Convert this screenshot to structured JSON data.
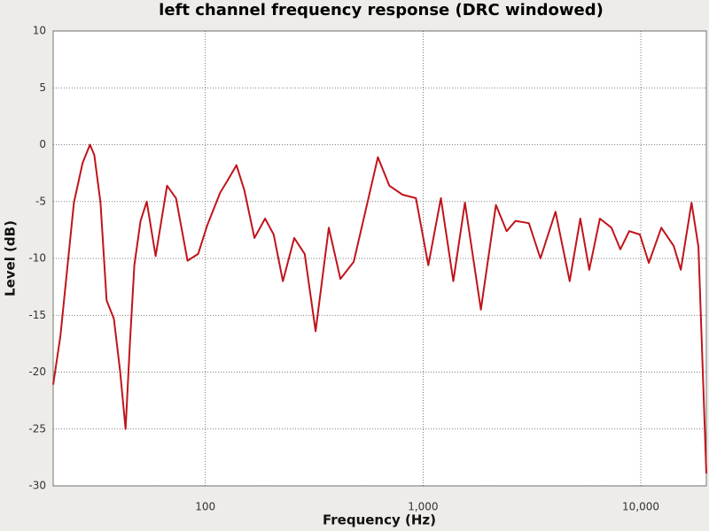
{
  "chart_data": {
    "type": "line",
    "title": "left channel frequency response (DRC windowed)",
    "x_label": "Frequency (Hz)",
    "y_label": "Level (dB)",
    "log_x": true,
    "grid": true,
    "xlim": [
      20,
      20000
    ],
    "ylim": [
      -30,
      10
    ],
    "xticks": [
      100,
      {
        "value": 1000,
        "label": "1,000"
      },
      {
        "value": 10000,
        "label": "10,000"
      }
    ],
    "yticks": [
      -30,
      -25,
      -20,
      -15,
      -10,
      -5,
      0,
      5,
      10
    ],
    "x": [
      20,
      21.6,
      24.9,
      27.3,
      29.5,
      30.9,
      33,
      35.2,
      38,
      40.6,
      43,
      45,
      47.2,
      50.4,
      53.8,
      59.1,
      66.7,
      73.3,
      82.8,
      92.7,
      102,
      117,
      126,
      139,
      151,
      168,
      188,
      206,
      227,
      256,
      286,
      321,
      369,
      417,
      480,
      543,
      620,
      700,
      805,
      927,
      1057,
      1207,
      1377,
      1556,
      1842,
      2161,
      2420,
      2656,
      3062,
      3459,
      4057,
      4714,
      5277,
      5797,
      6490,
      7330,
      8055,
      8846,
      9906,
      10890,
      12420,
      14170,
      15270,
      17100,
      18400,
      20000
    ],
    "series": [
      {
        "name": "left channel",
        "color": "#c0141c",
        "values": [
          -21.1,
          -16.8,
          -5.1,
          -1.6,
          0,
          -0.9,
          -5.1,
          -13.7,
          -15.3,
          -19.9,
          -25,
          -17.6,
          -10.6,
          -6.7,
          -5,
          -9.8,
          -3.6,
          -4.7,
          -10.2,
          -9.6,
          -7.1,
          -4.2,
          -3.2,
          -1.8,
          -4,
          -8.2,
          -6.5,
          -7.9,
          -12,
          -8.2,
          -9.6,
          -16.4,
          -7.3,
          -11.8,
          -10.3,
          -5.9,
          -1.1,
          -3.6,
          -4.4,
          -4.7,
          -10.6,
          -4.7,
          -12,
          -5.1,
          -14.5,
          -5.3,
          -7.6,
          -6.7,
          -6.9,
          -10,
          -5.9,
          -12,
          -6.5,
          -11,
          -6.5,
          -7.3,
          -9.2,
          -7.6,
          -7.9,
          -10.4,
          -7.3,
          -8.9,
          -11,
          -5.1,
          -9,
          -28.9
        ]
      }
    ]
  }
}
